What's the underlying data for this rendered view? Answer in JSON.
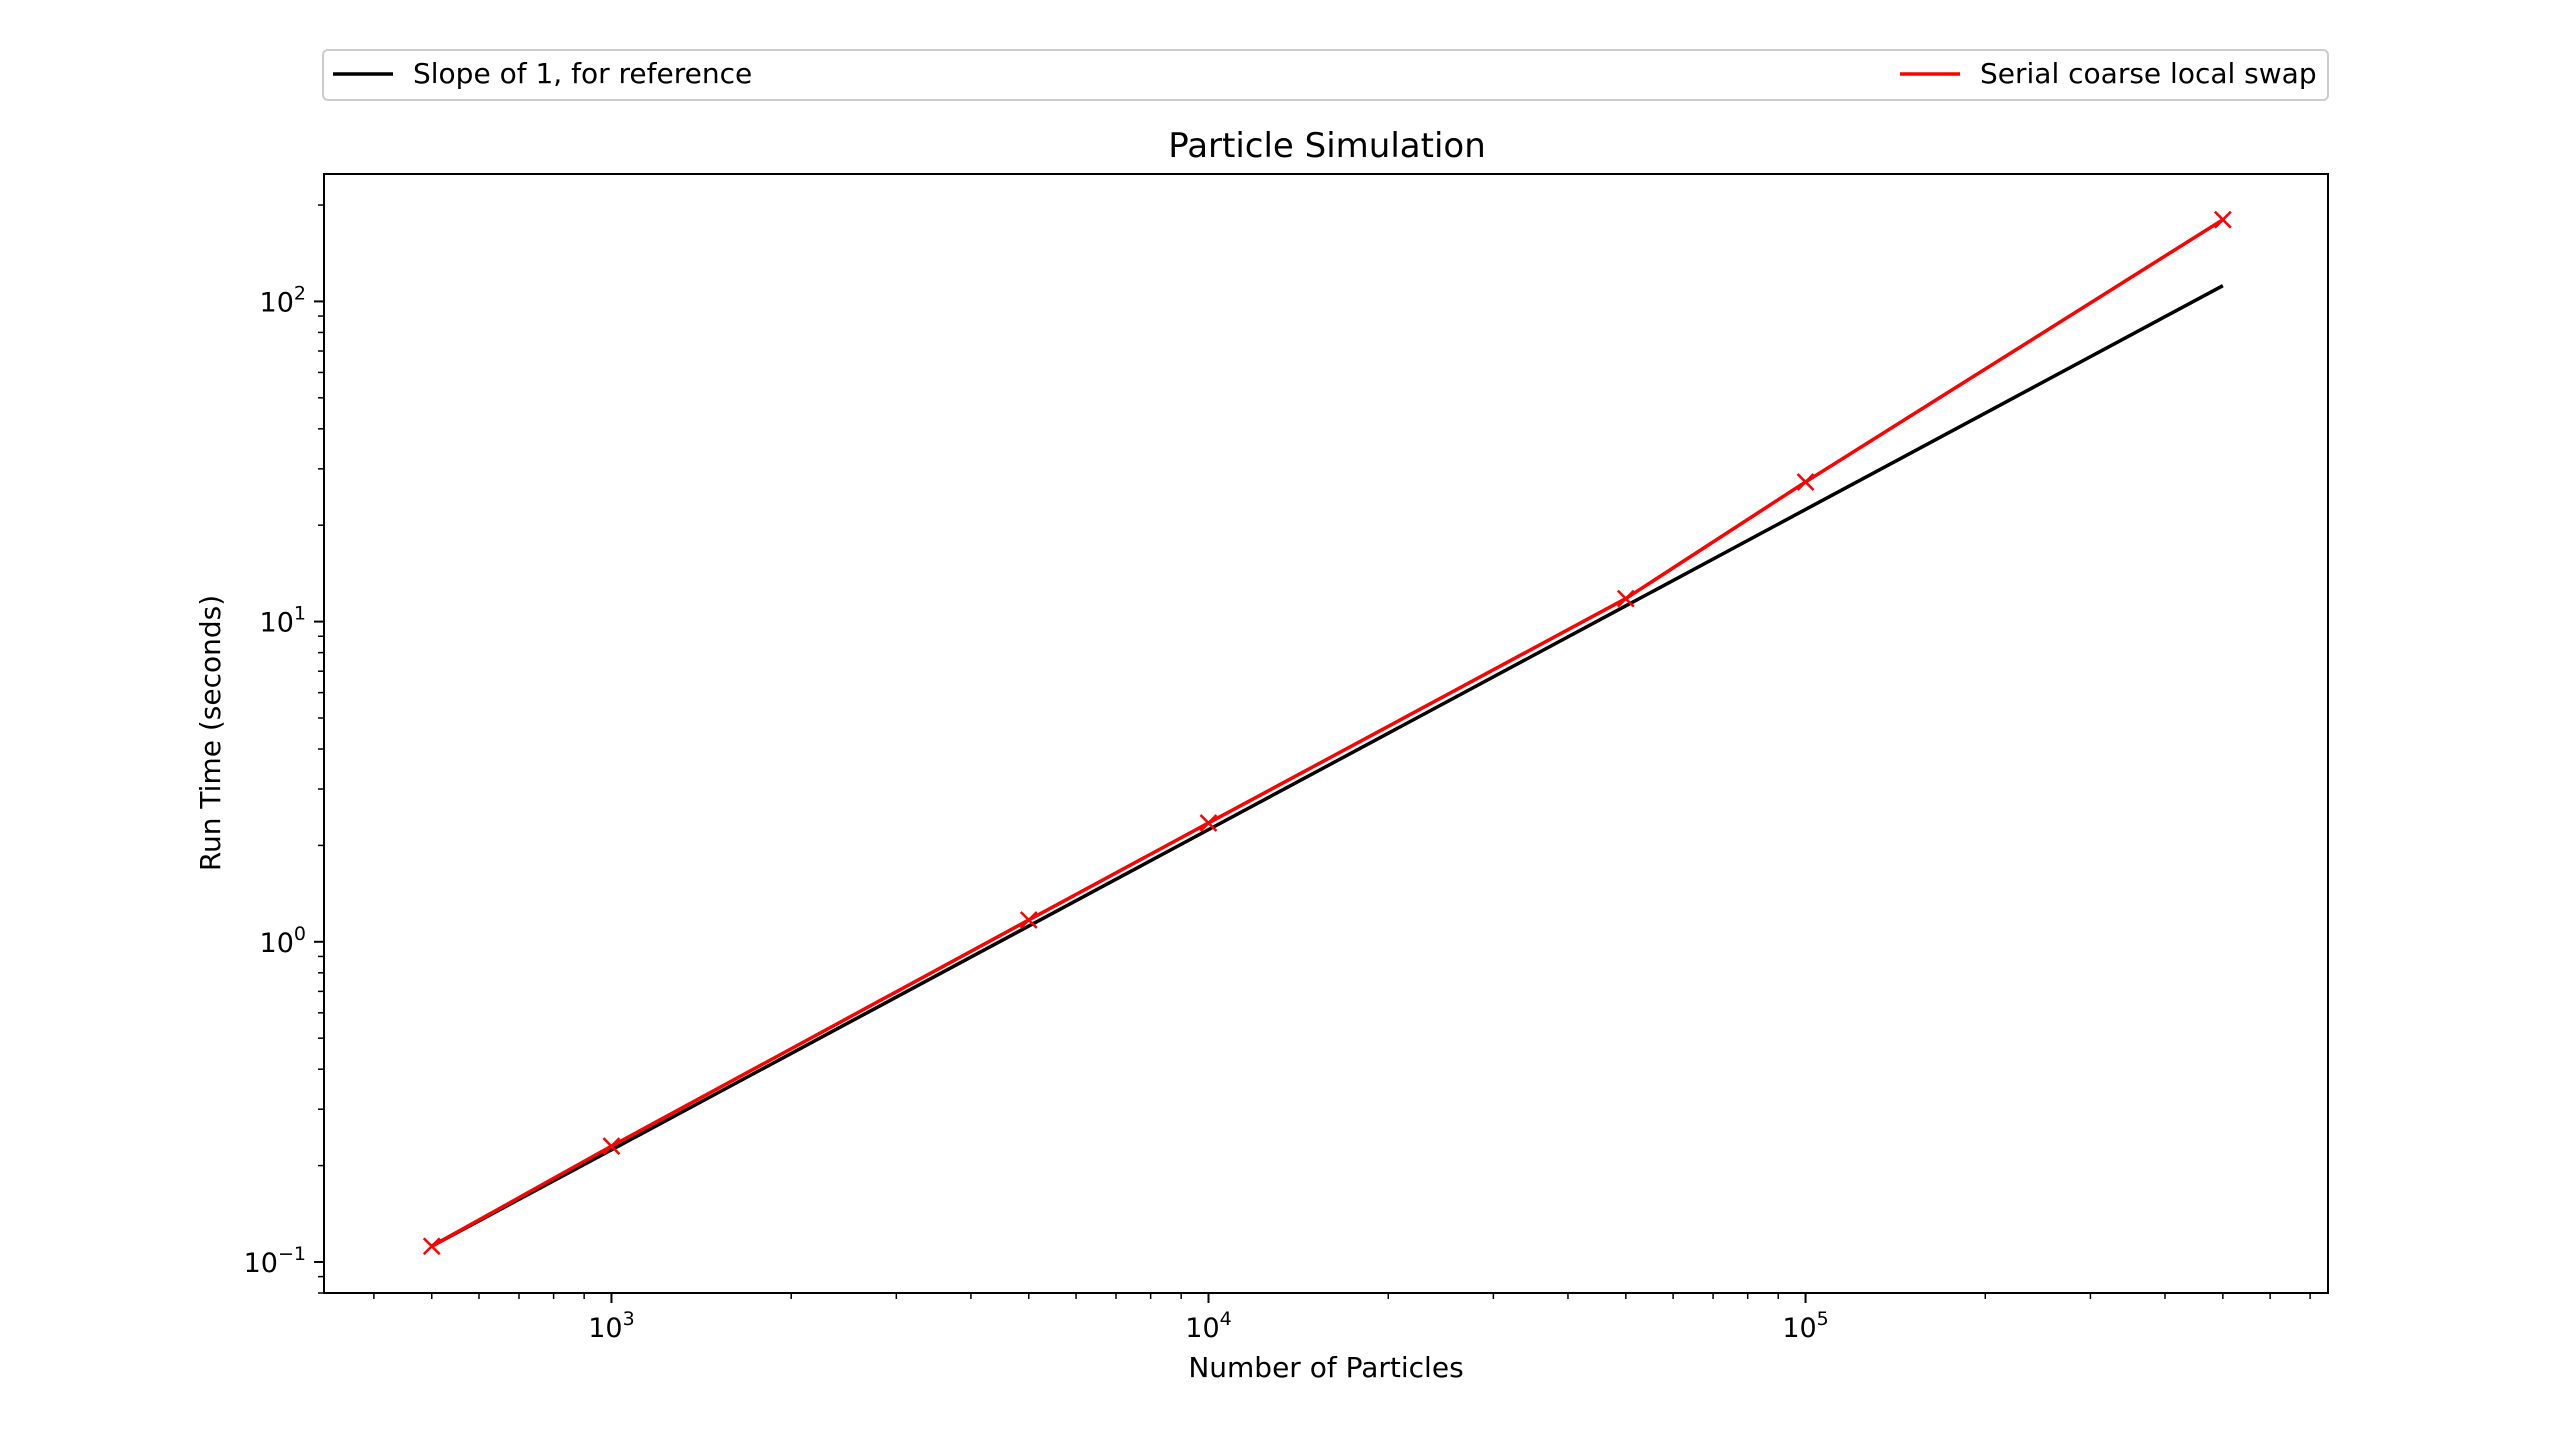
{
  "chart_data": {
    "type": "line",
    "title": "Particle Simulation",
    "xlabel": "Number of Particles",
    "ylabel": "Run Time (seconds)",
    "xscale": "log",
    "yscale": "log",
    "xlim": [
      330,
      750000
    ],
    "ylim": [
      0.08,
      250
    ],
    "x_ticks": [
      {
        "value": 1000,
        "base": "10",
        "exp": "3"
      },
      {
        "value": 10000,
        "base": "10",
        "exp": "4"
      },
      {
        "value": 100000,
        "base": "10",
        "exp": "5"
      }
    ],
    "y_ticks": [
      {
        "value": 0.1,
        "base": "10",
        "exp": "−1"
      },
      {
        "value": 1,
        "base": "10",
        "exp": "0"
      },
      {
        "value": 10,
        "base": "10",
        "exp": "1"
      },
      {
        "value": 100,
        "base": "10",
        "exp": "2"
      }
    ],
    "grid": false,
    "legend": "top, outside",
    "series": [
      {
        "name": "Slope of 1, for reference",
        "color": "#000000",
        "marker": "none",
        "x": [
          500,
          1000,
          5000,
          10000,
          50000,
          100000,
          500000
        ],
        "y": [
          0.112,
          0.224,
          1.12,
          2.24,
          11.2,
          22.4,
          112
        ]
      },
      {
        "name": "Serial coarse local swap",
        "color": "#ff0000",
        "marker": "x",
        "x": [
          500,
          1000,
          5000,
          10000,
          50000,
          100000,
          500000
        ],
        "y": [
          0.112,
          0.23,
          1.17,
          2.35,
          11.8,
          27.3,
          180
        ]
      }
    ]
  }
}
